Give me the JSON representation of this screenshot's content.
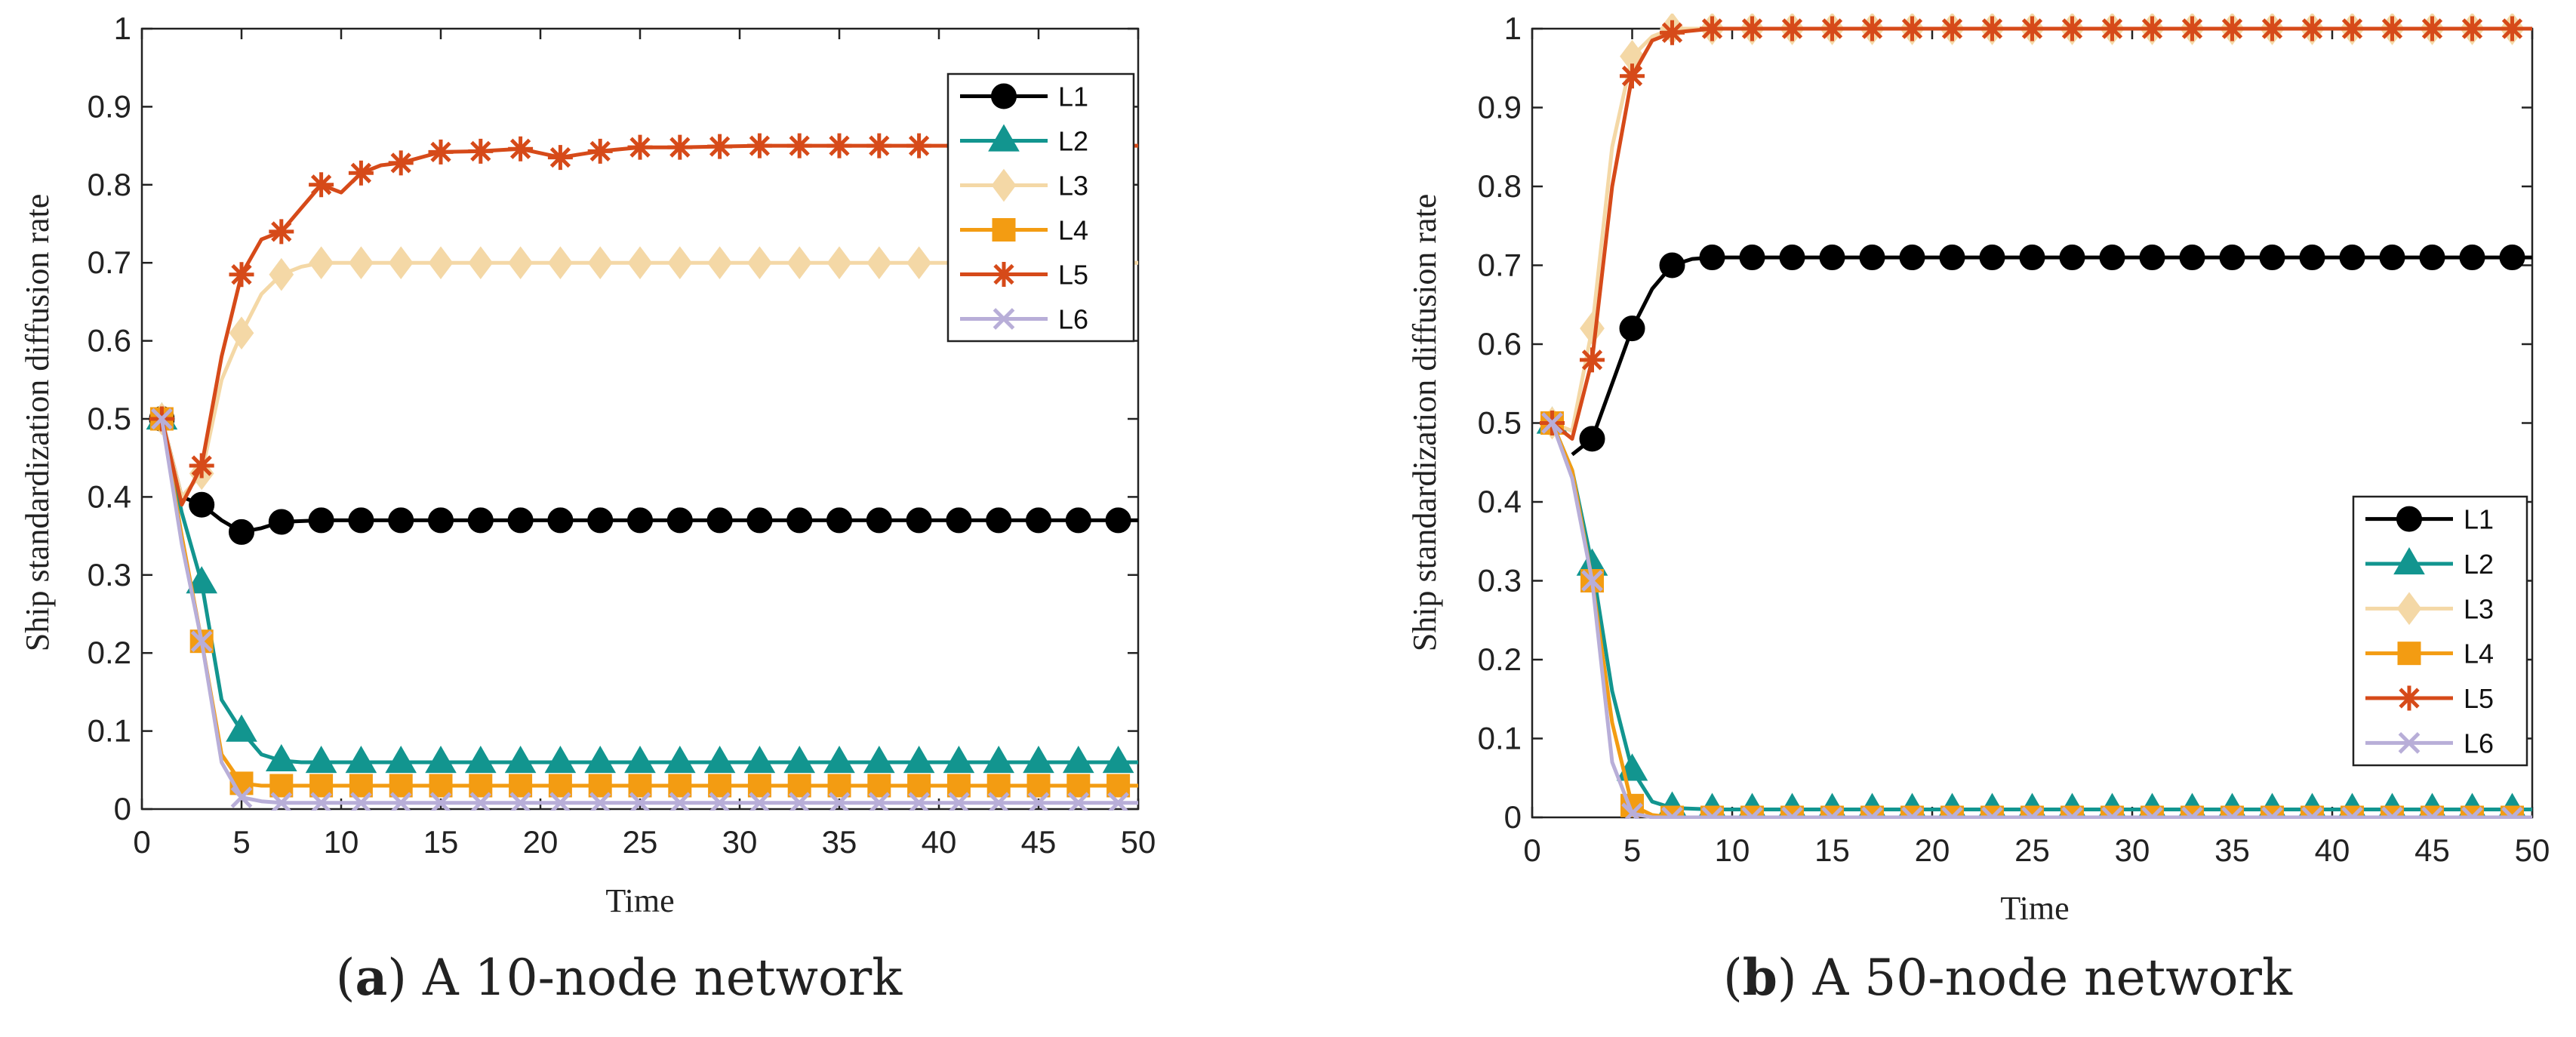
{
  "charts": [
    {
      "id": "a",
      "caption": {
        "letter": "a",
        "text": "A 10-node network"
      },
      "chart_data": {
        "type": "line",
        "title": "",
        "xlabel": "Time",
        "ylabel": "Ship standardization diffusion rate",
        "xlim": [
          0,
          50
        ],
        "ylim": [
          0,
          1
        ],
        "xticks": [
          "0",
          "5",
          "10",
          "15",
          "20",
          "25",
          "30",
          "35",
          "40",
          "45",
          "50"
        ],
        "yticks": [
          "0",
          "0.1",
          "0.2",
          "0.3",
          "0.4",
          "0.5",
          "0.6",
          "0.7",
          "0.8",
          "0.9",
          "1"
        ],
        "legend_position": "top-right",
        "grid": false,
        "series": [
          {
            "name": "L1",
            "color": "#000000",
            "marker": "circle",
            "points": [
              [
                1,
                0.5
              ],
              [
                2,
                0.4
              ],
              [
                3,
                0.39
              ],
              [
                4,
                0.37
              ],
              [
                5,
                0.355
              ],
              [
                6,
                0.36
              ],
              [
                7,
                0.368
              ],
              [
                9,
                0.37
              ],
              [
                50,
                0.37
              ]
            ]
          },
          {
            "name": "L2",
            "color": "#12958f",
            "marker": "triangle",
            "points": [
              [
                1,
                0.5
              ],
              [
                2,
                0.38
              ],
              [
                3,
                0.29
              ],
              [
                4,
                0.14
              ],
              [
                5,
                0.1
              ],
              [
                6,
                0.07
              ],
              [
                7,
                0.062
              ],
              [
                8,
                0.06
              ],
              [
                50,
                0.06
              ]
            ]
          },
          {
            "name": "L3",
            "color": "#f4d8a6",
            "marker": "diamond",
            "points": [
              [
                1,
                0.5
              ],
              [
                2,
                0.4
              ],
              [
                3,
                0.43
              ],
              [
                4,
                0.55
              ],
              [
                5,
                0.61
              ],
              [
                6,
                0.66
              ],
              [
                7,
                0.685
              ],
              [
                8,
                0.695
              ],
              [
                9,
                0.7
              ],
              [
                50,
                0.7
              ]
            ]
          },
          {
            "name": "L4",
            "color": "#f39c12",
            "marker": "square",
            "points": [
              [
                1,
                0.5
              ],
              [
                2,
                0.35
              ],
              [
                3,
                0.215
              ],
              [
                4,
                0.07
              ],
              [
                5,
                0.033
              ],
              [
                6,
                0.03
              ],
              [
                50,
                0.03
              ]
            ]
          },
          {
            "name": "L5",
            "color": "#d64a19",
            "marker": "asterisk",
            "points": [
              [
                1,
                0.5
              ],
              [
                2,
                0.39
              ],
              [
                3,
                0.44
              ],
              [
                4,
                0.58
              ],
              [
                5,
                0.685
              ],
              [
                6,
                0.73
              ],
              [
                7,
                0.74
              ],
              [
                8,
                0.77
              ],
              [
                9,
                0.8
              ],
              [
                10,
                0.79
              ],
              [
                11,
                0.815
              ],
              [
                12,
                0.825
              ],
              [
                13,
                0.828
              ],
              [
                15,
                0.842
              ],
              [
                17,
                0.843
              ],
              [
                19,
                0.846
              ],
              [
                21,
                0.835
              ],
              [
                23,
                0.843
              ],
              [
                25,
                0.848
              ],
              [
                27,
                0.848
              ],
              [
                29,
                0.849
              ],
              [
                31,
                0.85
              ],
              [
                50,
                0.85
              ]
            ]
          },
          {
            "name": "L6",
            "color": "#b8aed8",
            "marker": "x",
            "points": [
              [
                1,
                0.5
              ],
              [
                2,
                0.34
              ],
              [
                3,
                0.215
              ],
              [
                4,
                0.06
              ],
              [
                5,
                0.015
              ],
              [
                6,
                0.01
              ],
              [
                7,
                0.008
              ],
              [
                50,
                0.008
              ]
            ]
          }
        ]
      }
    },
    {
      "id": "b",
      "caption": {
        "letter": "b",
        "text": "A 50-node network"
      },
      "chart_data": {
        "type": "line",
        "title": "",
        "xlabel": "Time",
        "ylabel": "Ship standardization diffusion rate",
        "xlim": [
          0,
          50
        ],
        "ylim": [
          0,
          1
        ],
        "xticks": [
          "0",
          "5",
          "10",
          "15",
          "20",
          "25",
          "30",
          "35",
          "40",
          "45",
          "50"
        ],
        "yticks": [
          "0",
          "0.1",
          "0.2",
          "0.3",
          "0.4",
          "0.5",
          "0.6",
          "0.7",
          "0.8",
          "0.9",
          "1"
        ],
        "legend_position": "bottom-right",
        "grid": false,
        "series": [
          {
            "name": "L1",
            "color": "#000000",
            "marker": "circle",
            "points": [
              [
                2,
                0.46
              ],
              [
                3,
                0.48
              ],
              [
                4,
                0.55
              ],
              [
                5,
                0.62
              ],
              [
                6,
                0.67
              ],
              [
                7,
                0.7
              ],
              [
                8,
                0.708
              ],
              [
                9,
                0.71
              ],
              [
                50,
                0.71
              ]
            ]
          },
          {
            "name": "L2",
            "color": "#12958f",
            "marker": "triangle",
            "points": [
              [
                1,
                0.5
              ],
              [
                2,
                0.44
              ],
              [
                3,
                0.32
              ],
              [
                4,
                0.16
              ],
              [
                5,
                0.06
              ],
              [
                6,
                0.02
              ],
              [
                7,
                0.012
              ],
              [
                9,
                0.01
              ],
              [
                50,
                0.01
              ]
            ]
          },
          {
            "name": "L3",
            "color": "#f4d8a6",
            "marker": "diamond",
            "points": [
              [
                1,
                0.5
              ],
              [
                2,
                0.49
              ],
              [
                3,
                0.62
              ],
              [
                4,
                0.85
              ],
              [
                5,
                0.965
              ],
              [
                6,
                0.99
              ],
              [
                7,
                1.0
              ],
              [
                50,
                1.0
              ]
            ]
          },
          {
            "name": "L4",
            "color": "#f39c12",
            "marker": "square",
            "points": [
              [
                1,
                0.5
              ],
              [
                2,
                0.44
              ],
              [
                3,
                0.3
              ],
              [
                4,
                0.12
              ],
              [
                5,
                0.015
              ],
              [
                6,
                0.003
              ],
              [
                7,
                0.0
              ],
              [
                50,
                0.0
              ]
            ]
          },
          {
            "name": "L5",
            "color": "#d64a19",
            "marker": "asterisk",
            "points": [
              [
                1,
                0.5
              ],
              [
                2,
                0.48
              ],
              [
                3,
                0.58
              ],
              [
                4,
                0.8
              ],
              [
                5,
                0.94
              ],
              [
                6,
                0.985
              ],
              [
                7,
                0.995
              ],
              [
                9,
                1.0
              ],
              [
                50,
                1.0
              ]
            ]
          },
          {
            "name": "L6",
            "color": "#b8aed8",
            "marker": "x",
            "points": [
              [
                1,
                0.5
              ],
              [
                2,
                0.43
              ],
              [
                3,
                0.3
              ],
              [
                4,
                0.07
              ],
              [
                5,
                0.005
              ],
              [
                6,
                0.0
              ],
              [
                50,
                0.0
              ]
            ]
          }
        ]
      }
    }
  ]
}
